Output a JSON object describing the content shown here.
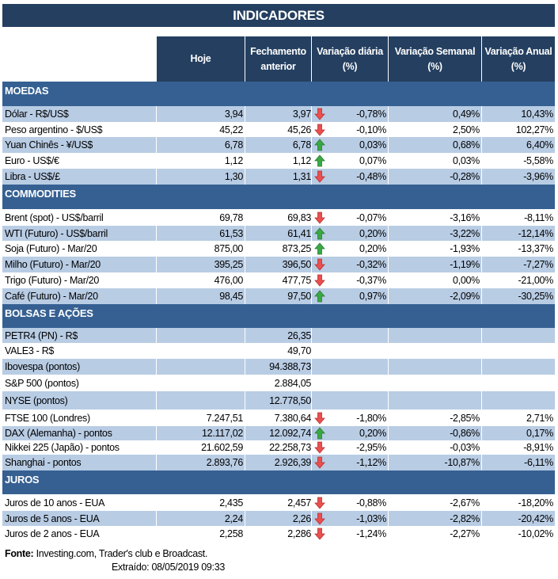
{
  "title": "INDICADORES",
  "headers": [
    "Hoje",
    "Fechamento anterior",
    "Variação diária (%)",
    "Variação Semanal (%)",
    "Variação Anual (%)"
  ],
  "colors": {
    "title_bg": "#243f60",
    "section_bg": "#366092",
    "stripe": "#b8cce4",
    "up": "#3aa845",
    "down": "#e95050"
  },
  "sections": [
    {
      "name": "MOEDAS",
      "rows": [
        {
          "label": "Dólar - R$/US$",
          "hoje": "3,94",
          "fech": "3,97",
          "dir": "down",
          "dia": "-0,78%",
          "sem": "0,49%",
          "ano": "10,43%"
        },
        {
          "label": "Peso argentino - $/US$",
          "hoje": "45,22",
          "fech": "45,26",
          "dir": "down",
          "dia": "-0,10%",
          "sem": "2,50%",
          "ano": "102,27%"
        },
        {
          "label": "Yuan Chinês - ¥/US$",
          "hoje": "6,78",
          "fech": "6,78",
          "dir": "up",
          "dia": "0,03%",
          "sem": "0,68%",
          "ano": "6,40%"
        },
        {
          "label": "Euro - US$/€",
          "hoje": "1,12",
          "fech": "1,12",
          "dir": "up",
          "dia": "0,07%",
          "sem": "0,03%",
          "ano": "-5,58%"
        },
        {
          "label": "Libra - US$/£",
          "hoje": "1,30",
          "fech": "1,31",
          "dir": "down",
          "dia": "-0,48%",
          "sem": "-0,28%",
          "ano": "-3,96%"
        }
      ]
    },
    {
      "name": "COMMODITIES",
      "rows": [
        {
          "label": "Brent (spot) - US$/barril",
          "hoje": "69,78",
          "fech": "69,83",
          "dir": "down",
          "dia": "-0,07%",
          "sem": "-3,16%",
          "ano": "-8,11%"
        },
        {
          "label": "WTI (Futuro) - US$/barril",
          "hoje": "61,53",
          "fech": "61,41",
          "dir": "up",
          "dia": "0,20%",
          "sem": "-3,22%",
          "ano": "-12,14%"
        },
        {
          "label": "Soja (Futuro) - Mar/20",
          "hoje": "875,00",
          "fech": "873,25",
          "dir": "up",
          "dia": "0,20%",
          "sem": "-1,93%",
          "ano": "-13,37%"
        },
        {
          "label": "Milho (Futuro) - Mar/20",
          "hoje": "395,25",
          "fech": "396,50",
          "dir": "down",
          "dia": "-0,32%",
          "sem": "-1,19%",
          "ano": "-7,27%"
        },
        {
          "label": "Trigo (Futuro) - Mar/20",
          "hoje": "476,00",
          "fech": "477,75",
          "dir": "down",
          "dia": "-0,37%",
          "sem": "0,00%",
          "ano": "-21,00%"
        },
        {
          "label": "Café (Futuro) - Mar/20",
          "hoje": "98,45",
          "fech": "97,50",
          "dir": "up",
          "dia": "0,97%",
          "sem": "-2,09%",
          "ano": "-30,25%"
        }
      ]
    },
    {
      "name": "BOLSAS E AÇÕES",
      "rows": [
        {
          "label": "PETR4 (PN) - R$",
          "fech": "26,35"
        },
        {
          "label": "VALE3 - R$",
          "fech": "49,70"
        },
        {
          "label": "Ibovespa (pontos)",
          "fech": "94.388,73"
        },
        {
          "label": "S&P 500 (pontos)",
          "fech": "2.884,05"
        },
        {
          "label": "NYSE (pontos)",
          "fech": "12.778,50"
        },
        {
          "label": "FTSE 100 (Londres)",
          "hoje": "7.247,51",
          "fech": "7.380,64",
          "dir": "down",
          "dia": "-1,80%",
          "sem": "-2,85%",
          "ano": "2,71%"
        },
        {
          "label": "DAX (Alemanha) - pontos",
          "hoje": "12.117,02",
          "fech": "12.092,74",
          "dir": "up",
          "dia": "0,20%",
          "sem": "-0,86%",
          "ano": "0,17%"
        },
        {
          "label": "Nikkei 225 (Japão) - pontos",
          "hoje": "21.602,59",
          "fech": "22.258,73",
          "dir": "down",
          "dia": "-2,95%",
          "sem": "-0,03%",
          "ano": "-8,91%"
        },
        {
          "label": "Shanghai - pontos",
          "hoje": "2.893,76",
          "fech": "2.926,39",
          "dir": "down",
          "dia": "-1,12%",
          "sem": "-10,87%",
          "ano": "-6,11%"
        }
      ]
    },
    {
      "name": "JUROS",
      "rows": [
        {
          "label": "Juros de 10 anos - EUA",
          "hoje": "2,435",
          "fech": "2,457",
          "dir": "down",
          "dia": "-0,88%",
          "sem": "-2,67%",
          "ano": "-18,20%"
        },
        {
          "label": "Juros de 5 anos - EUA",
          "hoje": "2,24",
          "fech": "2,26",
          "dir": "down",
          "dia": "-1,03%",
          "sem": "-2,82%",
          "ano": "-20,42%"
        },
        {
          "label": "Juros de 2 anos - EUA",
          "hoje": "2,258",
          "fech": "2,286",
          "dir": "down",
          "dia": "-1,24%",
          "sem": "-2,27%",
          "ano": "-10,02%"
        }
      ]
    }
  ],
  "footer": {
    "fonte_label": "Fonte:",
    "fonte_text": " Investing.com, Trader's club e Broadcast.",
    "extraido": "Extraído:  08/05/2019 09:33"
  }
}
